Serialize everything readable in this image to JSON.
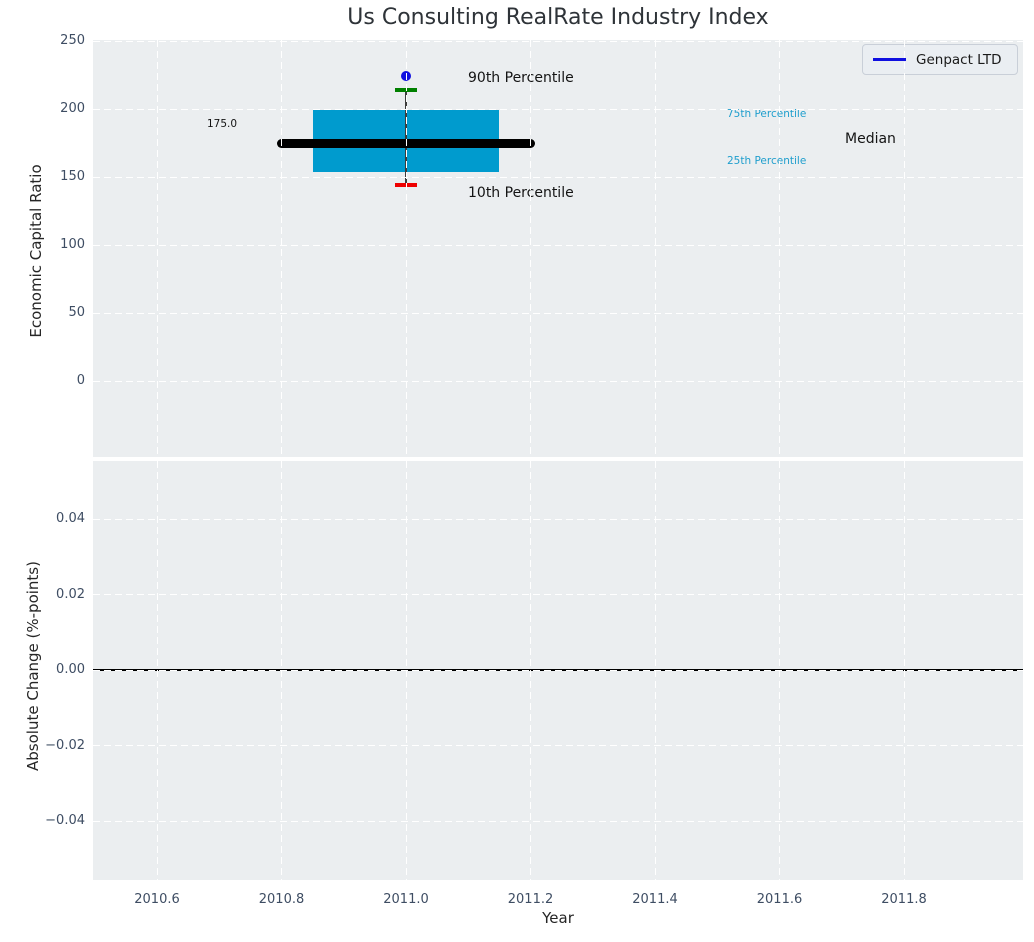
{
  "figure": {
    "title": "Us Consulting RealRate Industry Index",
    "background": "#ffffff",
    "axes_background": "#ebeef0",
    "grid_color": "#ffffff"
  },
  "legend": {
    "label": "Genpact LTD",
    "line_color": "#0f0fe0",
    "position": "upper right"
  },
  "top_plot": {
    "ylabel": "Economic Capital Ratio",
    "ytick_labels": [
      "250",
      "200",
      "150",
      "100",
      "50",
      "0"
    ],
    "annotations": {
      "median_value_label": "175.0",
      "p90_label": "90th Percentile",
      "p10_label": "10th Percentile",
      "p75_label": "75th Percentile",
      "p25_label": "25th Percentile",
      "median_label": "Median"
    },
    "colors": {
      "box": "#009bce",
      "median_line": "#000000",
      "p90_tick": "#008000",
      "p10_tick": "#ee0000",
      "company_dot": "#0f0fe0",
      "percentile_text": "#1f9ecd"
    }
  },
  "bottom_plot": {
    "ylabel": "Absolute Change (%-points)",
    "ytick_labels": [
      "0.04",
      "0.02",
      "0.00",
      "−0.02",
      "−0.04"
    ]
  },
  "x_axis": {
    "label": "Year",
    "tick_labels": [
      "2010.6",
      "2010.8",
      "2011.0",
      "2011.2",
      "2011.4",
      "2011.6",
      "2011.8"
    ]
  },
  "chart_data": [
    {
      "type": "box-percentile",
      "title": "Us Consulting RealRate Industry Index",
      "xlabel": "Year",
      "ylabel": "Economic Capital Ratio",
      "xlim": [
        2010.5,
        2011.99
      ],
      "ylim": [
        -56,
        251
      ],
      "xticks": [
        2010.6,
        2010.8,
        2011.0,
        2011.2,
        2011.4,
        2011.6,
        2011.8
      ],
      "yticks": [
        0,
        50,
        100,
        150,
        200,
        250
      ],
      "grid": "white dashed on gray background",
      "legend_entries": [
        "Genpact LTD"
      ],
      "x_center": 2011.0,
      "percentiles": {
        "p10": 144,
        "p25": 154,
        "median": 175.0,
        "p75": 199,
        "p90": 214
      },
      "median_value_label": "175.0",
      "company_point": {
        "name": "Genpact LTD",
        "x": 2011.0,
        "y": 224,
        "marker": "circle",
        "color": "#0f0fe0"
      },
      "box_x_range": [
        2010.85,
        2011.15
      ],
      "median_x_range": [
        2010.8,
        2011.2
      ],
      "annotations": [
        "90th Percentile",
        "10th Percentile",
        "75th Percentile",
        "25th Percentile",
        "Median"
      ]
    },
    {
      "type": "line",
      "xlabel": "Year",
      "ylabel": "Absolute Change (%-points)",
      "xlim": [
        2010.5,
        2011.99
      ],
      "ylim": [
        -0.0556,
        0.0554
      ],
      "xticks": [
        2010.6,
        2010.8,
        2011.0,
        2011.2,
        2011.4,
        2011.6,
        2011.8
      ],
      "yticks": [
        -0.04,
        -0.02,
        0.0,
        0.02,
        0.04
      ],
      "grid": "white dashed on gray background",
      "zero_line": 0.0,
      "series": []
    }
  ]
}
